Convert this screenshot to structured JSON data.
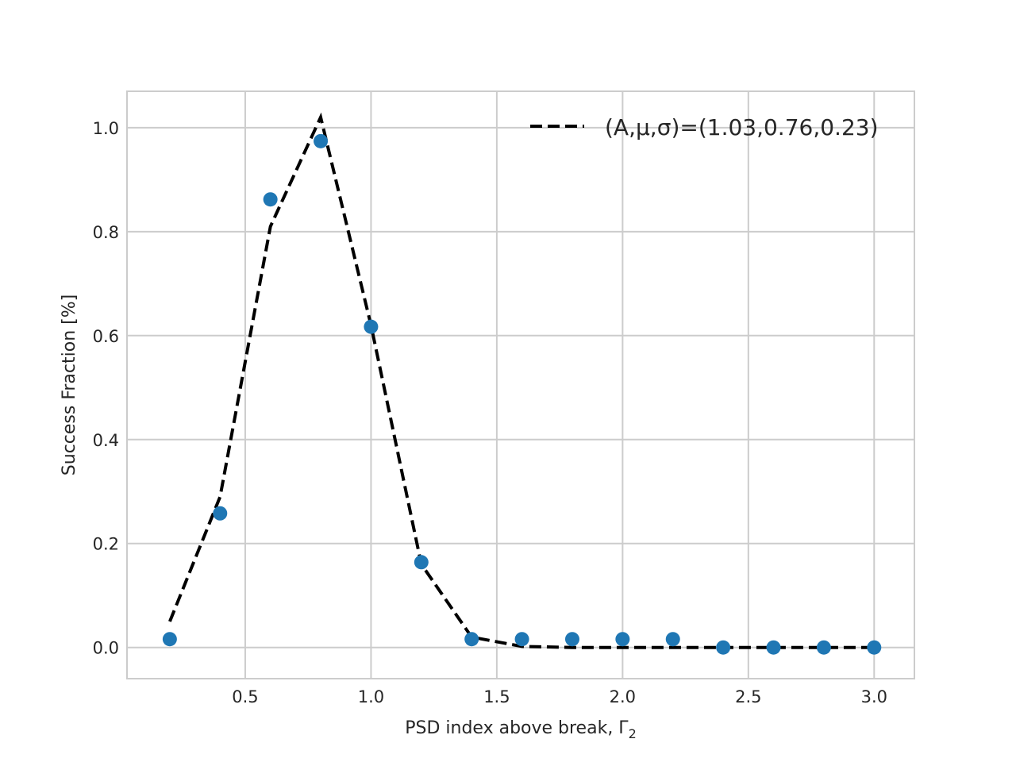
{
  "chart_data": {
    "type": "scatter",
    "xlabel": "PSD index above break, Γ",
    "xlabel_subscript": "2",
    "ylabel": "Success Fraction [%]",
    "xlim": [
      0.03,
      3.16
    ],
    "ylim": [
      -0.06,
      1.07
    ],
    "xticks": [
      0.5,
      1.0,
      1.5,
      2.0,
      2.5,
      3.0
    ],
    "xtick_labels": [
      "0.5",
      "1.0",
      "1.5",
      "2.0",
      "2.5",
      "3.0"
    ],
    "yticks": [
      0.0,
      0.2,
      0.4,
      0.6,
      0.8,
      1.0
    ],
    "ytick_labels": [
      "0.0",
      "0.2",
      "0.4",
      "0.6",
      "0.8",
      "1.0"
    ],
    "grid": true,
    "legend_position": "top-right",
    "colors": {
      "points": "#1f77b4",
      "fit": "#000000",
      "grid": "#cccccc"
    },
    "series": [
      {
        "kind": "scatter",
        "x": [
          0.2,
          0.4,
          0.6,
          0.8,
          1.0,
          1.2,
          1.4,
          1.6,
          1.8,
          2.0,
          2.2,
          2.4,
          2.6,
          2.8,
          3.0
        ],
        "y": [
          0.016,
          0.258,
          0.862,
          0.974,
          0.617,
          0.164,
          0.016,
          0.016,
          0.016,
          0.016,
          0.016,
          0.0,
          0.0,
          0.0,
          0.0
        ]
      },
      {
        "kind": "line",
        "name": "(A,μ,σ)=(1.03,0.76,0.23)",
        "style": "dashed",
        "x": [
          0.2,
          0.4,
          0.6,
          0.8,
          1.0,
          1.2,
          1.4,
          1.6,
          1.8,
          2.0,
          2.2,
          2.4,
          2.6,
          2.8,
          3.0
        ],
        "y": [
          0.05,
          0.29,
          0.81,
          1.02,
          0.62,
          0.16,
          0.02,
          0.002,
          0.0,
          0.0,
          0.0,
          0.0,
          0.0,
          0.0,
          0.0
        ]
      }
    ]
  }
}
